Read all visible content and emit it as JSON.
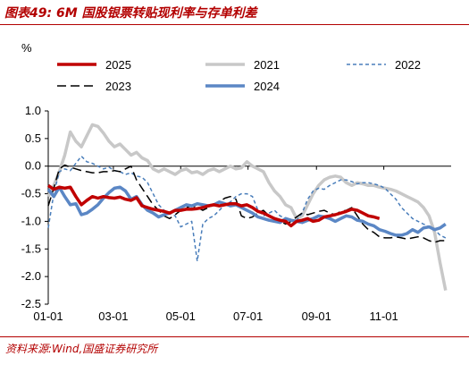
{
  "header": {
    "title": "图表49:  6M 国股银票转贴现利率与存单利差"
  },
  "footer": {
    "source": "资料来源:Wind,国盛证券研究所"
  },
  "colors": {
    "brand": "#b30000"
  },
  "chart_data": {
    "type": "line",
    "ylabel": "%",
    "xlabel": "",
    "ylim": [
      -2.5,
      1.0
    ],
    "yticks": [
      "1.0",
      "0.5",
      "0.0",
      "-0.5",
      "-1.0",
      "-1.5",
      "-2.0",
      "-2.5"
    ],
    "yvalues": [
      1.0,
      0.5,
      0.0,
      -0.5,
      -1.0,
      -1.5,
      -2.0,
      -2.5
    ],
    "xticks": [
      "01-01",
      "03-01",
      "05-01",
      "07-01",
      "09-01",
      "11-01"
    ],
    "xtick_days": [
      0,
      59,
      120,
      181,
      243,
      304
    ],
    "grid": false,
    "legend_position": "top",
    "series": [
      {
        "name": "2025",
        "color": "#c00000",
        "dash": "",
        "width": 3.5,
        "x": [
          0,
          5,
          10,
          15,
          20,
          25,
          30,
          35,
          40,
          45,
          50,
          55,
          60,
          65,
          70,
          75,
          80,
          85,
          90,
          95,
          100,
          105,
          110,
          115,
          120,
          125,
          130,
          135,
          140,
          145,
          150,
          155,
          160,
          165,
          170,
          175,
          180,
          185,
          190,
          195,
          200,
          205,
          210,
          215,
          220,
          225,
          230,
          235,
          240,
          245,
          250,
          255,
          260,
          265,
          270,
          275,
          280,
          285,
          290,
          295,
          300
        ],
        "y": [
          -0.35,
          -0.42,
          -0.38,
          -0.4,
          -0.38,
          -0.55,
          -0.7,
          -0.62,
          -0.55,
          -0.58,
          -0.55,
          -0.57,
          -0.58,
          -0.56,
          -0.6,
          -0.62,
          -0.57,
          -0.72,
          -0.75,
          -0.78,
          -0.8,
          -0.82,
          -0.85,
          -0.8,
          -0.8,
          -0.78,
          -0.78,
          -0.77,
          -0.75,
          -0.72,
          -0.7,
          -0.72,
          -0.7,
          -0.68,
          -0.68,
          -0.72,
          -0.7,
          -0.75,
          -0.82,
          -0.85,
          -0.9,
          -0.95,
          -0.98,
          -1.0,
          -1.08,
          -1.0,
          -0.98,
          -0.95,
          -1.0,
          -0.98,
          -0.92,
          -0.9,
          -0.88,
          -0.85,
          -0.82,
          -0.78,
          -0.8,
          -0.85,
          -0.9,
          -0.92,
          -0.95
        ]
      },
      {
        "name": "2021",
        "color": "#c8c8c8",
        "dash": "",
        "width": 3.5,
        "x": [
          0,
          5,
          10,
          15,
          20,
          25,
          30,
          35,
          40,
          45,
          50,
          55,
          60,
          65,
          70,
          75,
          80,
          85,
          90,
          95,
          100,
          105,
          110,
          115,
          120,
          125,
          130,
          135,
          140,
          145,
          150,
          155,
          160,
          165,
          170,
          175,
          180,
          185,
          190,
          195,
          200,
          205,
          210,
          215,
          220,
          225,
          230,
          235,
          240,
          245,
          250,
          255,
          260,
          265,
          270,
          275,
          280,
          285,
          290,
          295,
          300,
          305,
          310,
          315,
          320,
          325,
          330,
          335,
          340,
          345,
          350,
          355,
          360
        ],
        "y": [
          -0.55,
          -0.35,
          -0.1,
          0.2,
          0.62,
          0.45,
          0.35,
          0.55,
          0.75,
          0.72,
          0.6,
          0.45,
          0.35,
          0.4,
          0.3,
          0.2,
          0.25,
          0.15,
          0.1,
          -0.05,
          -0.1,
          -0.05,
          -0.1,
          -0.15,
          -0.08,
          -0.05,
          -0.12,
          -0.1,
          -0.15,
          -0.08,
          -0.05,
          -0.1,
          -0.05,
          0.0,
          -0.05,
          -0.03,
          0.08,
          0.0,
          -0.05,
          -0.1,
          -0.3,
          -0.45,
          -0.55,
          -0.7,
          -0.75,
          -0.95,
          -0.9,
          -0.7,
          -0.5,
          -0.35,
          -0.25,
          -0.2,
          -0.18,
          -0.2,
          -0.3,
          -0.35,
          -0.3,
          -0.32,
          -0.35,
          -0.35,
          -0.38,
          -0.4,
          -0.42,
          -0.45,
          -0.5,
          -0.55,
          -0.6,
          -0.65,
          -0.75,
          -0.9,
          -1.2,
          -1.75,
          -2.25
        ]
      },
      {
        "name": "2022",
        "color": "#4a7ebb",
        "dash": "4,3",
        "width": 1.5,
        "x": [
          0,
          5,
          10,
          15,
          20,
          25,
          30,
          35,
          40,
          45,
          50,
          55,
          60,
          65,
          70,
          75,
          80,
          85,
          90,
          95,
          100,
          105,
          110,
          115,
          120,
          125,
          130,
          135,
          140,
          145,
          150,
          155,
          160,
          165,
          170,
          175,
          180,
          185,
          190,
          195,
          200,
          205,
          210,
          215,
          220,
          225,
          230,
          235,
          240,
          245,
          250,
          255,
          260,
          265,
          270,
          275,
          280,
          285,
          290,
          295,
          300,
          305,
          310,
          315,
          320,
          325,
          330,
          335,
          340,
          345,
          350,
          355,
          360
        ],
        "y": [
          -1.12,
          -0.5,
          -0.1,
          -0.05,
          -0.08,
          0.05,
          0.18,
          0.08,
          0.05,
          0.0,
          -0.05,
          -0.02,
          -0.08,
          -0.1,
          -0.15,
          -0.12,
          -0.18,
          -0.2,
          -0.3,
          -0.5,
          -0.7,
          -0.8,
          -0.85,
          -0.9,
          -1.1,
          -1.05,
          -1.0,
          -1.72,
          -1.05,
          -0.95,
          -0.9,
          -0.8,
          -0.7,
          -0.65,
          -0.55,
          -0.5,
          -0.5,
          -0.55,
          -0.8,
          -0.9,
          -0.85,
          -0.8,
          -0.9,
          -0.95,
          -1.0,
          -0.98,
          -0.85,
          -0.6,
          -0.45,
          -0.4,
          -0.42,
          -0.35,
          -0.3,
          -0.25,
          -0.25,
          -0.28,
          -0.32,
          -0.3,
          -0.3,
          -0.32,
          -0.35,
          -0.4,
          -0.5,
          -0.6,
          -0.75,
          -0.85,
          -0.95,
          -1.0,
          -1.05,
          -1.1,
          -1.15,
          -1.25,
          -1.3
        ]
      },
      {
        "name": "2023",
        "color": "#000000",
        "dash": "10,5",
        "width": 1.5,
        "x": [
          0,
          5,
          10,
          15,
          20,
          25,
          30,
          35,
          40,
          45,
          50,
          55,
          60,
          65,
          70,
          75,
          80,
          85,
          90,
          95,
          100,
          105,
          110,
          115,
          120,
          125,
          130,
          135,
          140,
          145,
          150,
          155,
          160,
          165,
          170,
          175,
          180,
          185,
          190,
          195,
          200,
          205,
          210,
          215,
          220,
          225,
          230,
          235,
          240,
          245,
          250,
          255,
          260,
          265,
          270,
          275,
          280,
          285,
          290,
          295,
          300,
          305,
          310,
          315,
          320,
          325,
          330,
          335,
          340,
          345,
          350,
          355,
          360
        ],
        "y": [
          -0.72,
          -0.4,
          -0.05,
          0.02,
          -0.02,
          -0.05,
          -0.08,
          -0.1,
          -0.12,
          -0.12,
          -0.1,
          -0.1,
          -0.08,
          -0.1,
          -0.05,
          0.0,
          -0.25,
          -0.4,
          -0.55,
          -0.7,
          -0.8,
          -0.9,
          -0.95,
          -0.88,
          -0.8,
          -0.75,
          -0.72,
          -0.75,
          -0.8,
          -0.75,
          -0.7,
          -0.65,
          -0.58,
          -0.55,
          -0.6,
          -0.9,
          -0.95,
          -0.92,
          -0.85,
          -0.8,
          -0.9,
          -0.95,
          -1.0,
          -1.05,
          -1.0,
          -0.92,
          -0.85,
          -0.88,
          -0.85,
          -0.82,
          -0.8,
          -0.85,
          -0.88,
          -0.82,
          -0.8,
          -0.75,
          -0.9,
          -1.05,
          -1.15,
          -1.2,
          -1.28,
          -1.3,
          -1.3,
          -1.28,
          -1.3,
          -1.32,
          -1.3,
          -1.28,
          -1.3,
          -1.35,
          -1.38,
          -1.35,
          -1.35
        ]
      },
      {
        "name": "2024",
        "color": "#5b87c5",
        "dash": "",
        "width": 3.5,
        "x": [
          0,
          5,
          10,
          15,
          20,
          25,
          30,
          35,
          40,
          45,
          50,
          55,
          60,
          65,
          70,
          75,
          80,
          85,
          90,
          95,
          100,
          105,
          110,
          115,
          120,
          125,
          130,
          135,
          140,
          145,
          150,
          155,
          160,
          165,
          170,
          175,
          180,
          185,
          190,
          195,
          200,
          205,
          210,
          215,
          220,
          225,
          230,
          235,
          240,
          245,
          250,
          255,
          260,
          265,
          270,
          275,
          280,
          285,
          290,
          295,
          300,
          305,
          310,
          315,
          320,
          325,
          330,
          335,
          340,
          345,
          350,
          355,
          360
        ],
        "y": [
          -0.42,
          -0.55,
          -0.38,
          -0.55,
          -0.7,
          -0.68,
          -0.88,
          -0.85,
          -0.78,
          -0.7,
          -0.58,
          -0.48,
          -0.4,
          -0.38,
          -0.45,
          -0.6,
          -0.55,
          -0.7,
          -0.8,
          -0.85,
          -0.92,
          -0.88,
          -0.85,
          -0.8,
          -0.75,
          -0.7,
          -0.72,
          -0.68,
          -0.7,
          -0.72,
          -0.7,
          -0.65,
          -0.68,
          -0.72,
          -0.7,
          -0.75,
          -0.8,
          -0.85,
          -0.92,
          -0.95,
          -0.98,
          -1.0,
          -1.02,
          -0.95,
          -0.98,
          -1.0,
          -1.02,
          -0.98,
          -0.95,
          -0.9,
          -0.92,
          -0.95,
          -1.0,
          -0.95,
          -0.9,
          -0.92,
          -0.98,
          -1.0,
          -1.05,
          -1.08,
          -1.15,
          -1.18,
          -1.22,
          -1.25,
          -1.25,
          -1.22,
          -1.15,
          -1.2,
          -1.12,
          -1.1,
          -1.15,
          -1.12,
          -1.05
        ]
      }
    ]
  }
}
